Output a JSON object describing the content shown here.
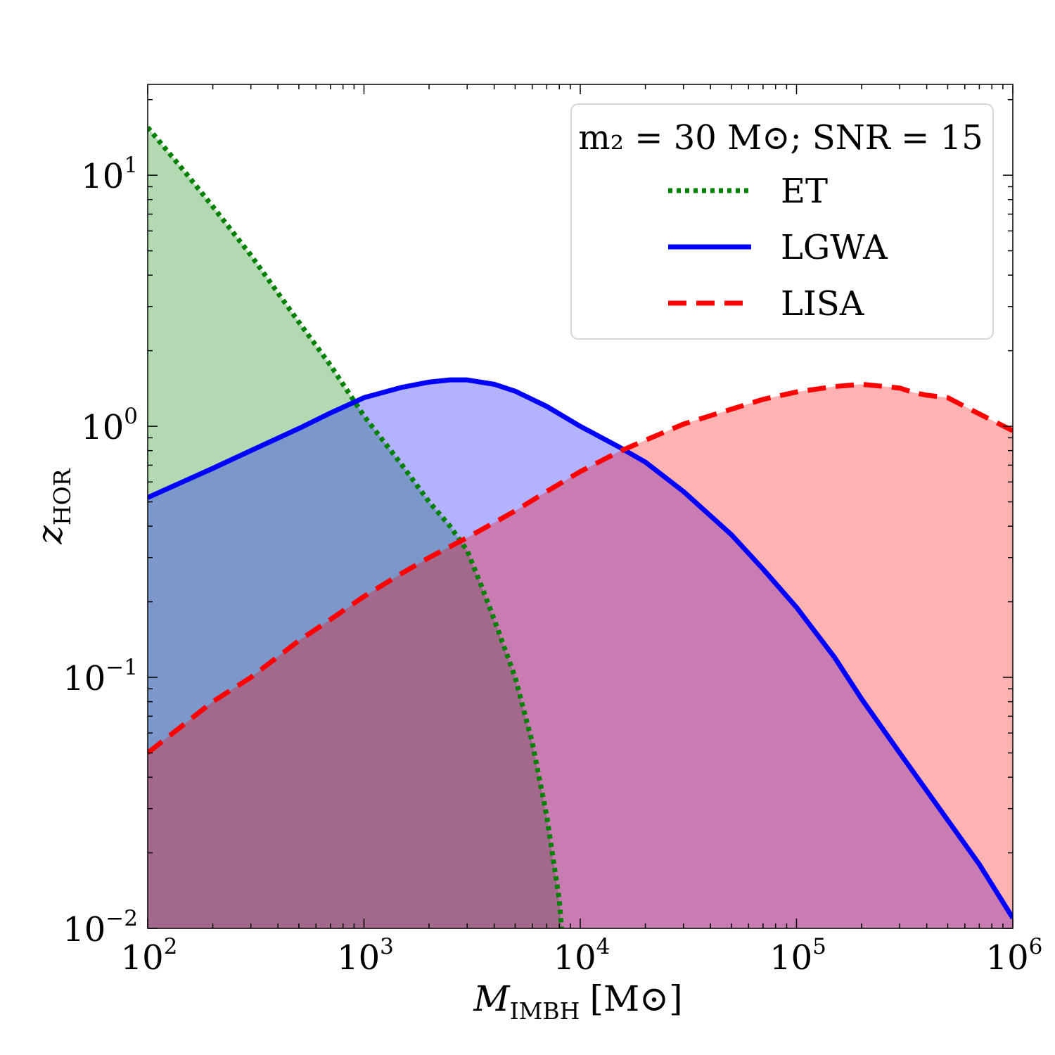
{
  "chart_data": {
    "type": "area",
    "xlabel": "M",
    "xlabel_sub": "IMBH",
    "xlabel_unit": "[M⊙]",
    "ylabel": "z",
    "ylabel_sub": "HOR",
    "xscale": "log",
    "yscale": "log",
    "xlim": [
      100,
      1000000
    ],
    "ylim": [
      0.01,
      23
    ],
    "x_ticks": [
      {
        "value": 100,
        "base": "10",
        "exp": "2"
      },
      {
        "value": 1000,
        "base": "10",
        "exp": "3"
      },
      {
        "value": 10000,
        "base": "10",
        "exp": "4"
      },
      {
        "value": 100000,
        "base": "10",
        "exp": "5"
      },
      {
        "value": 1000000,
        "base": "10",
        "exp": "6"
      }
    ],
    "y_ticks": [
      {
        "value": 0.01,
        "base": "10",
        "exp": "−2"
      },
      {
        "value": 0.1,
        "base": "10",
        "exp": "−1"
      },
      {
        "value": 1,
        "base": "10",
        "exp": "0"
      },
      {
        "value": 10,
        "base": "10",
        "exp": "1"
      }
    ],
    "legend": {
      "title": "m₂ = 30 M⊙; SNR = 15",
      "location": "upper-right"
    },
    "series": [
      {
        "name": "ET",
        "line_style": "dotted",
        "color": "#008000",
        "fill": "#008000",
        "x": [
          100,
          150,
          200,
          300,
          500,
          700,
          1000,
          1500,
          2000,
          2500,
          3000,
          3500,
          4000,
          5000,
          6000,
          7000,
          8000,
          8200
        ],
        "y": [
          15.5,
          10.2,
          7.5,
          4.8,
          2.6,
          1.75,
          1.1,
          0.7,
          0.5,
          0.4,
          0.32,
          0.23,
          0.17,
          0.1,
          0.055,
          0.028,
          0.013,
          0.01
        ]
      },
      {
        "name": "LGWA",
        "line_style": "solid",
        "color": "#0000ff",
        "fill": "#0000ff",
        "x": [
          100,
          200,
          300,
          500,
          700,
          1000,
          1500,
          2000,
          2500,
          3000,
          4000,
          5000,
          7000,
          10000,
          15000,
          20000,
          30000,
          50000,
          70000,
          100000,
          150000,
          200000,
          300000,
          500000,
          700000,
          1000000
        ],
        "y": [
          0.52,
          0.68,
          0.8,
          0.98,
          1.13,
          1.3,
          1.43,
          1.5,
          1.53,
          1.53,
          1.47,
          1.38,
          1.2,
          1.0,
          0.83,
          0.72,
          0.55,
          0.37,
          0.27,
          0.19,
          0.12,
          0.082,
          0.05,
          0.027,
          0.018,
          0.011
        ]
      },
      {
        "name": "LISA",
        "line_style": "dashed",
        "color": "#ff0000",
        "fill": "#ff0000",
        "x": [
          100,
          200,
          300,
          500,
          700,
          1000,
          1500,
          2000,
          3000,
          5000,
          7000,
          10000,
          15000,
          20000,
          30000,
          50000,
          70000,
          100000,
          150000,
          200000,
          300000,
          350000,
          400000,
          500000,
          700000,
          1000000
        ],
        "y": [
          0.05,
          0.08,
          0.1,
          0.14,
          0.17,
          0.21,
          0.26,
          0.3,
          0.36,
          0.46,
          0.55,
          0.66,
          0.79,
          0.88,
          1.02,
          1.17,
          1.28,
          1.37,
          1.44,
          1.47,
          1.42,
          1.36,
          1.33,
          1.3,
          1.12,
          0.96
        ]
      }
    ]
  }
}
